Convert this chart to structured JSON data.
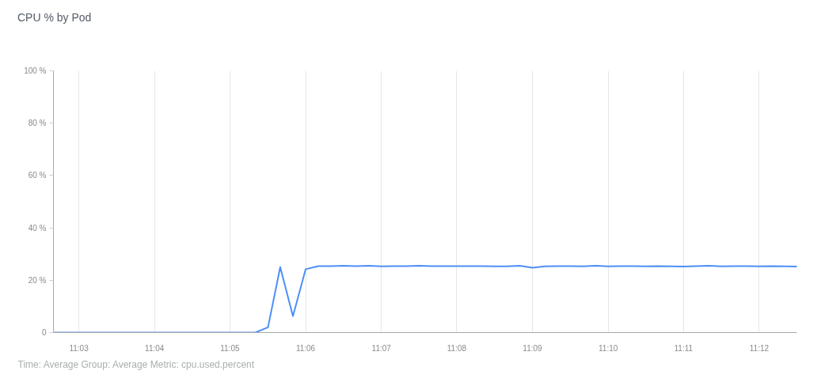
{
  "chart_data": {
    "type": "line",
    "title": "CPU % by Pod",
    "annotations": [
      "Time: Average  Group: Average  Metric: cpu.used.percent"
    ],
    "x": [
      11.0444,
      11.0472,
      11.05,
      11.0528,
      11.0556,
      11.0583,
      11.0611,
      11.0639,
      11.0667,
      11.0694,
      11.0722,
      11.075,
      11.0778,
      11.0806,
      11.0833,
      11.0861,
      11.0889,
      11.0917,
      11.0944,
      11.0972,
      11.1,
      11.1028,
      11.1056,
      11.1083,
      11.1111,
      11.1139,
      11.1167,
      11.1194,
      11.1222,
      11.125,
      11.1278,
      11.1306,
      11.1333,
      11.1361,
      11.1389,
      11.1417,
      11.1444,
      11.1472,
      11.15,
      11.1528,
      11.1556,
      11.1583,
      11.1611,
      11.1639,
      11.1667,
      11.1694,
      11.1722,
      11.175,
      11.1778,
      11.1806,
      11.1833,
      11.1861,
      11.1889,
      11.1917,
      11.1944,
      11.1972,
      11.2,
      11.2028,
      11.2056,
      11.2083
    ],
    "series": [
      {
        "color": "#4d8ff6",
        "values": [
          0,
          0,
          0,
          0,
          0,
          0,
          0,
          0,
          0,
          0,
          0,
          0,
          0,
          0,
          0,
          0,
          0,
          2.0,
          25.0,
          6.3,
          24.2,
          25.4,
          25.4,
          25.5,
          25.4,
          25.5,
          25.3,
          25.4,
          25.4,
          25.5,
          25.4,
          25.4,
          25.4,
          25.4,
          25.4,
          25.3,
          25.3,
          25.5,
          24.8,
          25.3,
          25.4,
          25.4,
          25.3,
          25.5,
          25.3,
          25.4,
          25.4,
          25.3,
          25.4,
          25.3,
          25.2,
          25.4,
          25.5,
          25.3,
          25.4,
          25.4,
          25.3,
          25.4,
          25.3,
          25.2
        ]
      }
    ],
    "xlim": [
      11.0444,
      11.2083
    ],
    "xticks": [
      {
        "value": 11.05,
        "label": "11:03"
      },
      {
        "value": 11.0667,
        "label": "11:04"
      },
      {
        "value": 11.0833,
        "label": "11:05"
      },
      {
        "value": 11.1,
        "label": "11:06"
      },
      {
        "value": 11.1167,
        "label": "11:07"
      },
      {
        "value": 11.1333,
        "label": "11:08"
      },
      {
        "value": 11.15,
        "label": "11:09"
      },
      {
        "value": 11.1667,
        "label": "11:10"
      },
      {
        "value": 11.1833,
        "label": "11:11"
      },
      {
        "value": 11.2,
        "label": "11:12"
      }
    ],
    "ylim": [
      0,
      100
    ],
    "yticks": [
      0,
      {
        "value": 20,
        "label": "20 %"
      },
      {
        "value": 40,
        "label": "40 %"
      },
      {
        "value": 60,
        "label": "60 %"
      },
      {
        "value": 80,
        "label": "80 %"
      },
      {
        "value": 100,
        "label": "100 %"
      }
    ],
    "grid": "x"
  }
}
